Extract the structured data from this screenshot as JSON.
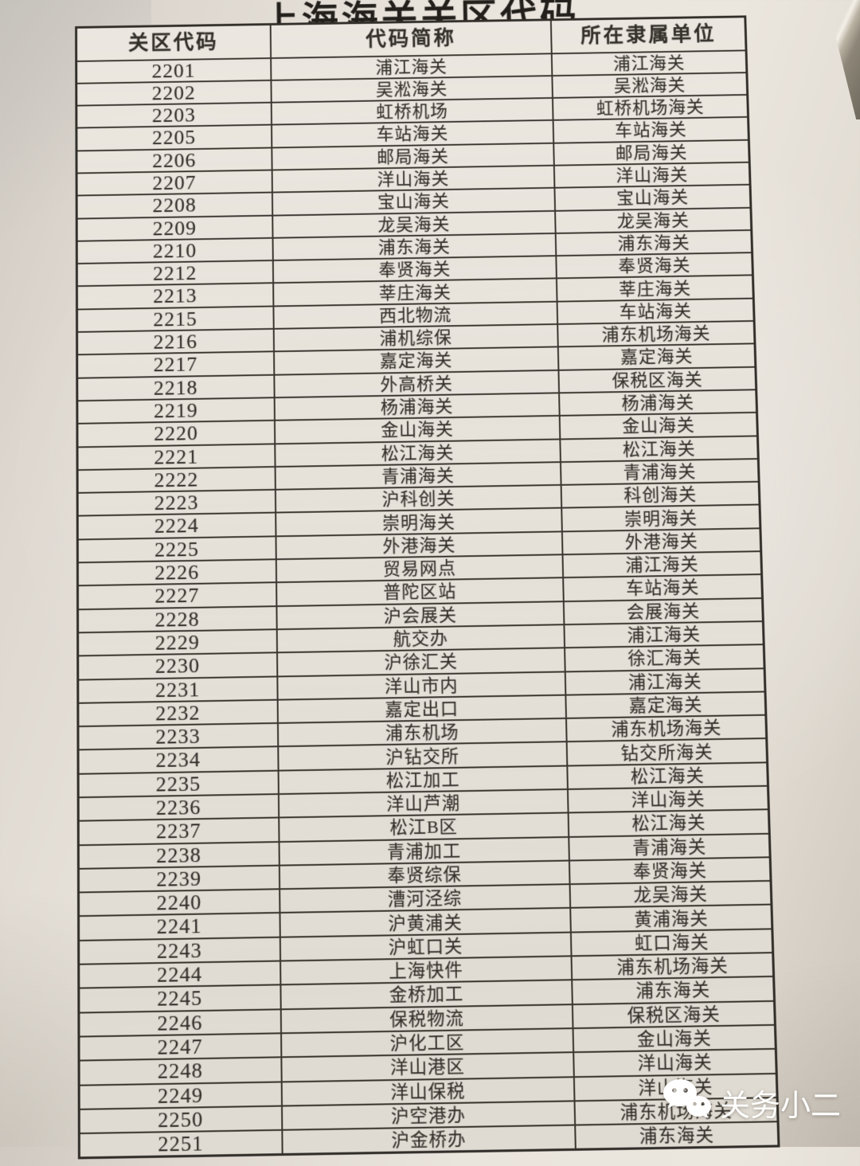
{
  "page": {
    "title": "上海海关关区代码",
    "watermark": {
      "label": "关务小二",
      "icon": "wechat-icon"
    },
    "colors": {
      "ink": "#33302b",
      "paper": "#e7e2d9",
      "desk": "#8d8678",
      "watermark": "#ffffff"
    }
  },
  "table": {
    "columns": [
      "关区代码",
      "代码简称",
      "所在隶属单位"
    ],
    "rows": [
      [
        "2201",
        "浦江海关",
        "浦江海关"
      ],
      [
        "2202",
        "吴淞海关",
        "吴淞海关"
      ],
      [
        "2203",
        "虹桥机场",
        "虹桥机场海关"
      ],
      [
        "2205",
        "车站海关",
        "车站海关"
      ],
      [
        "2206",
        "邮局海关",
        "邮局海关"
      ],
      [
        "2207",
        "洋山海关",
        "洋山海关"
      ],
      [
        "2208",
        "宝山海关",
        "宝山海关"
      ],
      [
        "2209",
        "龙吴海关",
        "龙吴海关"
      ],
      [
        "2210",
        "浦东海关",
        "浦东海关"
      ],
      [
        "2212",
        "奉贤海关",
        "奉贤海关"
      ],
      [
        "2213",
        "莘庄海关",
        "莘庄海关"
      ],
      [
        "2215",
        "西北物流",
        "车站海关"
      ],
      [
        "2216",
        "浦机综保",
        "浦东机场海关"
      ],
      [
        "2217",
        "嘉定海关",
        "嘉定海关"
      ],
      [
        "2218",
        "外高桥关",
        "保税区海关"
      ],
      [
        "2219",
        "杨浦海关",
        "杨浦海关"
      ],
      [
        "2220",
        "金山海关",
        "金山海关"
      ],
      [
        "2221",
        "松江海关",
        "松江海关"
      ],
      [
        "2222",
        "青浦海关",
        "青浦海关"
      ],
      [
        "2223",
        "沪科创关",
        "科创海关"
      ],
      [
        "2224",
        "崇明海关",
        "崇明海关"
      ],
      [
        "2225",
        "外港海关",
        "外港海关"
      ],
      [
        "2226",
        "贸易网点",
        "浦江海关"
      ],
      [
        "2227",
        "普陀区站",
        "车站海关"
      ],
      [
        "2228",
        "沪会展关",
        "会展海关"
      ],
      [
        "2229",
        "航交办",
        "浦江海关"
      ],
      [
        "2230",
        "沪徐汇关",
        "徐汇海关"
      ],
      [
        "2231",
        "洋山市内",
        "浦江海关"
      ],
      [
        "2232",
        "嘉定出口",
        "嘉定海关"
      ],
      [
        "2233",
        "浦东机场",
        "浦东机场海关"
      ],
      [
        "2234",
        "沪钻交所",
        "钻交所海关"
      ],
      [
        "2235",
        "松江加工",
        "松江海关"
      ],
      [
        "2236",
        "洋山芦潮",
        "洋山海关"
      ],
      [
        "2237",
        "松江B区",
        "松江海关"
      ],
      [
        "2238",
        "青浦加工",
        "青浦海关"
      ],
      [
        "2239",
        "奉贤综保",
        "奉贤海关"
      ],
      [
        "2240",
        "漕河泾综",
        "龙吴海关"
      ],
      [
        "2241",
        "沪黄浦关",
        "黄浦海关"
      ],
      [
        "2243",
        "沪虹口关",
        "虹口海关"
      ],
      [
        "2244",
        "上海快件",
        "浦东机场海关"
      ],
      [
        "2245",
        "金桥加工",
        "浦东海关"
      ],
      [
        "2246",
        "保税物流",
        "保税区海关"
      ],
      [
        "2247",
        "沪化工区",
        "金山海关"
      ],
      [
        "2248",
        "洋山港区",
        "洋山海关"
      ],
      [
        "2249",
        "洋山保税",
        "洋山海关"
      ],
      [
        "2250",
        "沪空港办",
        "浦东机场海关"
      ],
      [
        "2251",
        "沪金桥办",
        "浦东海关"
      ]
    ]
  }
}
